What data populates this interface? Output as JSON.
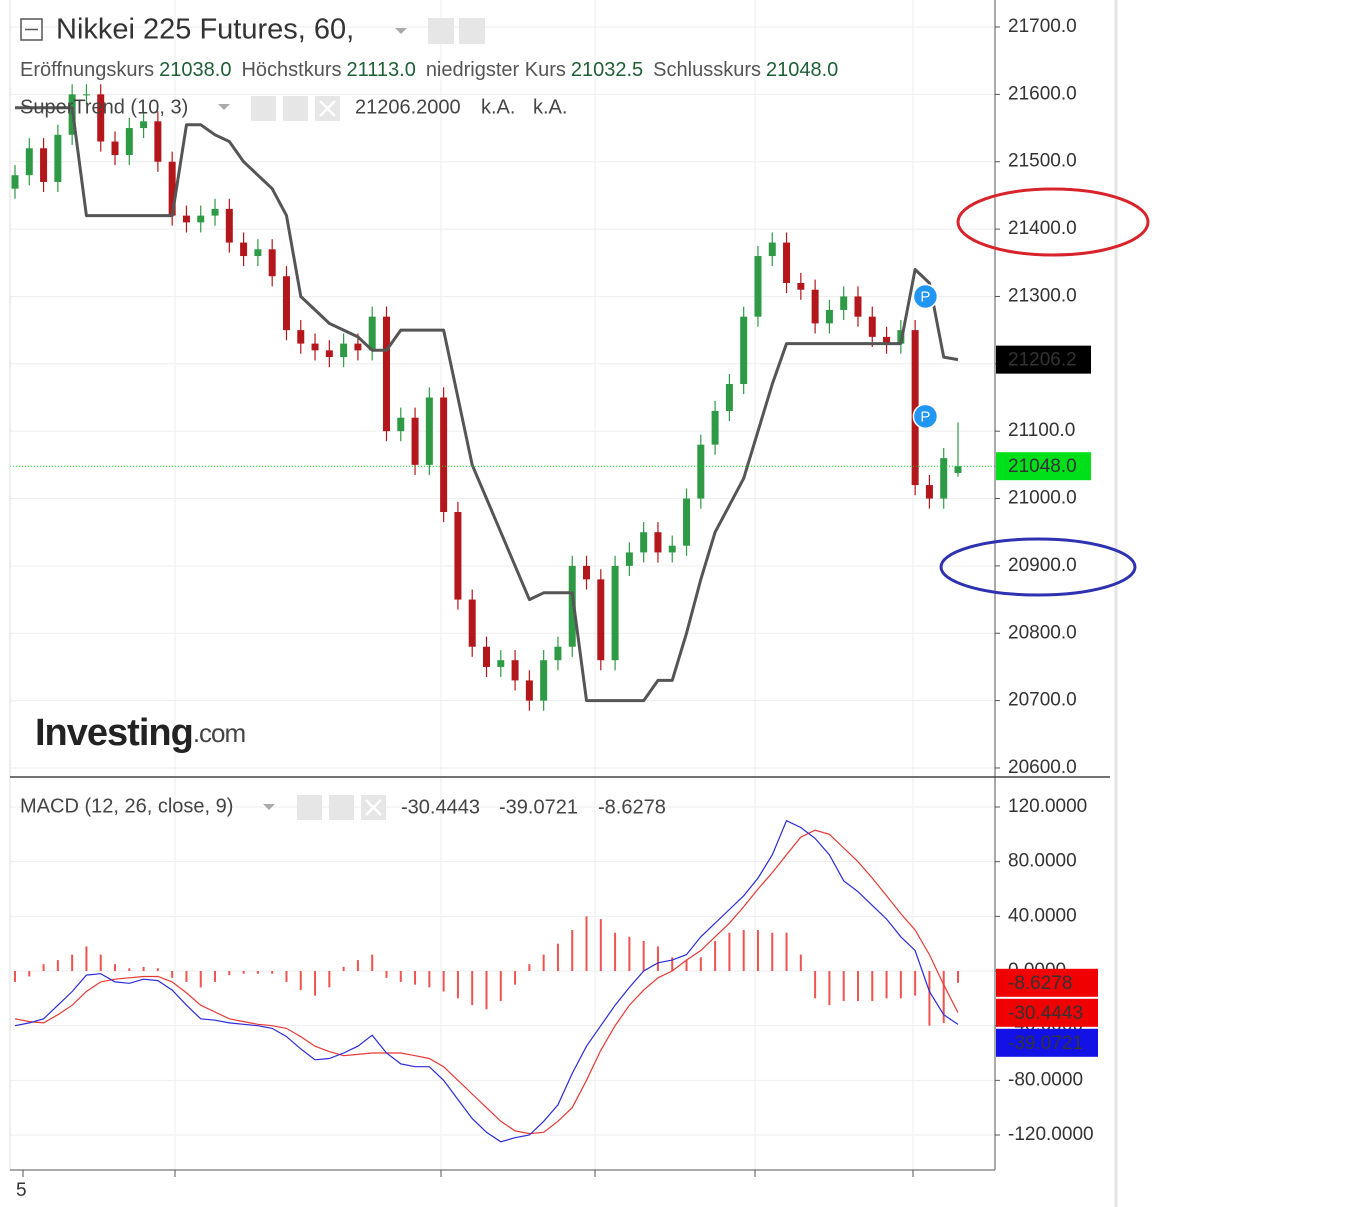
{
  "header": {
    "title": "Nikkei 225 Futures, 60,",
    "ohlc": [
      {
        "label": "Eröffnungskurs",
        "value": "21038.0"
      },
      {
        "label": "Höchstkurs",
        "value": "21113.0"
      },
      {
        "label": "niedrigster Kurs",
        "value": "21032.5"
      },
      {
        "label": "Schlusskurs",
        "value": "21048.0"
      }
    ],
    "indicator_extra": [
      "k.A.",
      "k.A."
    ]
  },
  "watermark": {
    "brand": "Investing",
    "suffix": ".com"
  },
  "chart_data": [
    {
      "type": "candlestick",
      "open": [
        21460,
        21480,
        21520,
        21470,
        21540,
        21600,
        21600,
        21530,
        21510,
        21550,
        21560,
        21500,
        21420,
        21410,
        21420,
        21430,
        21380,
        21360,
        21370,
        21330,
        21250,
        21230,
        21220,
        21210,
        21230,
        21220,
        21270,
        21100,
        21120,
        21050,
        21150,
        20980,
        20850,
        20780,
        20750,
        20760,
        20730,
        20700,
        20760,
        20780,
        20900,
        20880,
        20760,
        20900,
        20920,
        20950,
        20920,
        20930,
        21000,
        21080,
        21130,
        21170,
        21270,
        21360,
        21380,
        21320,
        21310,
        21260,
        21280,
        21300,
        21270,
        21240,
        21230,
        21250,
        21020,
        21000,
        21038
      ],
      "high": [
        21495,
        21535,
        21535,
        21555,
        21615,
        21615,
        21615,
        21545,
        21565,
        21575,
        21575,
        21515,
        21435,
        21435,
        21445,
        21445,
        21395,
        21385,
        21385,
        21345,
        21265,
        21245,
        21235,
        21245,
        21245,
        21285,
        21285,
        21135,
        21135,
        21165,
        21165,
        20995,
        20865,
        20795,
        20775,
        20775,
        20745,
        20775,
        20795,
        20915,
        20915,
        20895,
        20915,
        20935,
        20965,
        20965,
        20945,
        21015,
        21095,
        21145,
        21185,
        21285,
        21375,
        21395,
        21395,
        21335,
        21325,
        21295,
        21315,
        21315,
        21285,
        21255,
        21265,
        21265,
        21035,
        21075,
        21113
      ],
      "low": [
        21445,
        21465,
        21455,
        21455,
        21525,
        21585,
        21515,
        21495,
        21495,
        21535,
        21485,
        21405,
        21395,
        21395,
        21405,
        21365,
        21345,
        21345,
        21315,
        21235,
        21215,
        21205,
        21195,
        21195,
        21205,
        21205,
        21085,
        21085,
        21035,
        21035,
        20965,
        20835,
        20765,
        20735,
        20735,
        20715,
        20685,
        20685,
        20745,
        20765,
        20865,
        20745,
        20745,
        20885,
        20905,
        20905,
        20905,
        20915,
        20985,
        21065,
        21115,
        21155,
        21255,
        21345,
        21305,
        21295,
        21245,
        21245,
        21265,
        21255,
        21225,
        21215,
        21215,
        21005,
        20985,
        20985,
        21032.5
      ],
      "close": [
        21480,
        21520,
        21470,
        21540,
        21600,
        21600,
        21530,
        21510,
        21550,
        21560,
        21500,
        21420,
        21410,
        21420,
        21430,
        21380,
        21360,
        21370,
        21330,
        21250,
        21230,
        21220,
        21210,
        21230,
        21220,
        21270,
        21100,
        21120,
        21050,
        21150,
        20980,
        20850,
        20780,
        20750,
        20760,
        20730,
        20700,
        20760,
        20780,
        20900,
        20880,
        20760,
        20900,
        20920,
        20950,
        20920,
        20930,
        21000,
        21080,
        21130,
        21170,
        21270,
        21360,
        21380,
        21320,
        21310,
        21260,
        21280,
        21300,
        21270,
        21240,
        21230,
        21250,
        21020,
        21000,
        21060,
        21048
      ],
      "up_color": "#2e9a45",
      "down_color": "#b3161b",
      "series": [
        {
          "name": "SuperTrend (10, 3)",
          "color": "#555555",
          "value_label": "21206.2000",
          "values": [
            21580,
            21580,
            21580,
            21580,
            21580,
            21420,
            21420,
            21420,
            21420,
            21420,
            21420,
            21420,
            21555,
            21555,
            21540,
            21530,
            21500,
            21480,
            21460,
            21420,
            21300,
            21280,
            21260,
            21250,
            21240,
            21220,
            21220,
            21250,
            21250,
            21250,
            21250,
            21150,
            21050,
            21000,
            20950,
            20900,
            20850,
            20860,
            20860,
            20860,
            20700,
            20700,
            20700,
            20700,
            20700,
            20730,
            20730,
            20800,
            20880,
            20950,
            20990,
            21030,
            21100,
            21170,
            21230,
            21230,
            21230,
            21230,
            21230,
            21230,
            21230,
            21230,
            21230,
            21340,
            21320,
            21210,
            21206.2
          ]
        }
      ],
      "last_price_label": "21048.0",
      "last_price_color": "#00e01a",
      "pivots": [
        {
          "label": "P",
          "candle": 64,
          "value": 21300
        },
        {
          "label": "P",
          "candle": 64,
          "value": 21122
        }
      ],
      "xtick_labels": [
        "5"
      ],
      "ylim": [
        20586.6,
        21740.1
      ],
      "yticks": [
        {
          "value": 20600,
          "label": "20600.0"
        },
        {
          "value": 20700,
          "label": "20700.0"
        },
        {
          "value": 20800,
          "label": "20800.0"
        },
        {
          "value": 20900,
          "label": "20900.0"
        },
        {
          "value": 21000,
          "label": "21000.0"
        },
        {
          "value": 21100,
          "label": "21100.0"
        },
        {
          "value": 21200,
          "label": "21200.0"
        },
        {
          "value": 21300,
          "label": "21300.0"
        },
        {
          "value": 21400,
          "label": "21400.0"
        },
        {
          "value": 21500,
          "label": "21500.0"
        },
        {
          "value": 21600,
          "label": "21600.0"
        },
        {
          "value": 21700,
          "label": "21700.0"
        }
      ],
      "grid": true
    },
    {
      "type": "macd",
      "title": "MACD (12, 26, close, 9)",
      "series": [
        {
          "color": "#e53935",
          "values": [
            -35,
            -37,
            -38,
            -32,
            -25,
            -15,
            -8,
            -6,
            -5,
            -4,
            -4,
            -8,
            -16,
            -25,
            -30,
            -35,
            -37,
            -39,
            -40,
            -42,
            -48,
            -55,
            -59,
            -62,
            -61,
            -60,
            -60,
            -60,
            -62,
            -64,
            -70,
            -80,
            -90,
            -100,
            -110,
            -117,
            -119,
            -118,
            -110,
            -100,
            -80,
            -58,
            -40,
            -25,
            -14,
            -5,
            0,
            8,
            15,
            25,
            35,
            47,
            60,
            72,
            85,
            98,
            103,
            100,
            90,
            80,
            68,
            55,
            42,
            30,
            12,
            -10,
            -30.4443
          ]
        },
        {
          "color": "#2b2bd9",
          "values": [
            -40,
            -38,
            -35,
            -25,
            -15,
            -3,
            -2,
            -8,
            -9,
            -6,
            -7,
            -14,
            -25,
            -35,
            -36,
            -38,
            -39,
            -40,
            -42,
            -48,
            -57,
            -65,
            -64,
            -60,
            -55,
            -47,
            -60,
            -68,
            -70,
            -70,
            -80,
            -94,
            -108,
            -118,
            -125,
            -122,
            -120,
            -110,
            -98,
            -75,
            -55,
            -40,
            -25,
            -12,
            0,
            6,
            8,
            12,
            25,
            35,
            45,
            55,
            68,
            85,
            110,
            105,
            97,
            85,
            66,
            58,
            48,
            38,
            25,
            15,
            -15,
            -32,
            -39.0721
          ]
        }
      ],
      "histogram": {
        "color": "#ef5350",
        "values": [
          -8,
          -4,
          5,
          8,
          12,
          18,
          12,
          5,
          2,
          3,
          2,
          -5,
          -8,
          -12,
          -8,
          -3,
          -2,
          -2,
          -2,
          -8,
          -14,
          -18,
          -12,
          3,
          8,
          12,
          -5,
          -8,
          -10,
          -12,
          -15,
          -20,
          -25,
          -28,
          -22,
          -10,
          5,
          12,
          20,
          30,
          40,
          38,
          28,
          25,
          22,
          18,
          10,
          8,
          10,
          22,
          28,
          30,
          30,
          28,
          28,
          12,
          -20,
          -25,
          -22,
          -22,
          -22,
          -20,
          -20,
          -18,
          -40,
          -38,
          -8.6278
        ]
      },
      "ylim": [
        -145.6,
        141.95
      ],
      "yticks": [
        {
          "value": 120,
          "label": "120.0000"
        },
        {
          "value": 80,
          "label": "80.0000"
        },
        {
          "value": 40,
          "label": "40.0000"
        },
        {
          "value": 0,
          "label": "0.0000"
        },
        {
          "value": -40,
          "label": "-40.0000"
        },
        {
          "value": -80,
          "label": "-80.0000"
        },
        {
          "value": -120,
          "label": "-120.0000"
        }
      ],
      "grid": true
    }
  ]
}
